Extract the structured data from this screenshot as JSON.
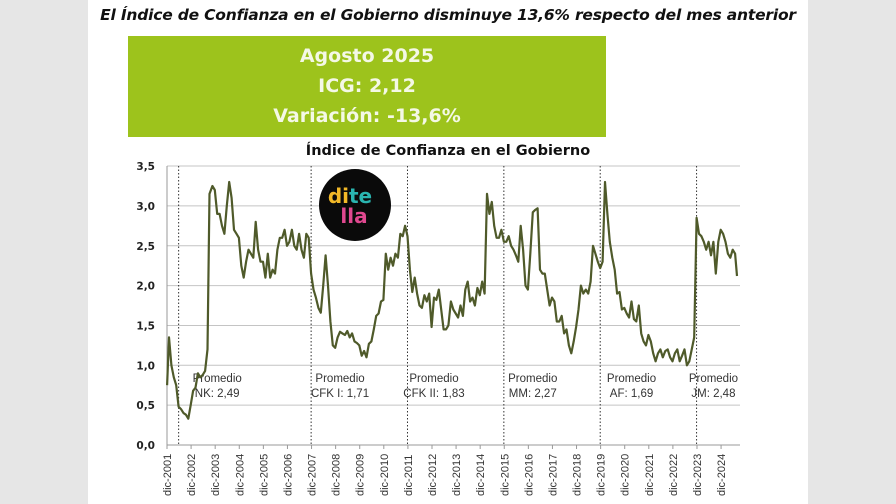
{
  "headline": "El Índice de Confianza en el Gobierno disminuye 13,6% respecto del mes anterior",
  "banner": {
    "period": "Agosto 2025",
    "icg": "ICG: 2,12",
    "variation": "Variación: -13,6%",
    "color": "#9dc31c"
  },
  "logo": {
    "parts": [
      "di",
      "te",
      "lla"
    ],
    "colors": {
      "di": "#f2b928",
      "te": "#2ab5b0",
      "lla": "#e0488f",
      "bg": "#0a0a0a"
    }
  },
  "chart_data": {
    "type": "line",
    "title": "Índice de Confianza en el Gobierno",
    "xlabel": "",
    "ylabel": "",
    "ylim": [
      0,
      3.5
    ],
    "yticks": [
      "0,0",
      "0,5",
      "1,0",
      "1,5",
      "2,0",
      "2,5",
      "3,0",
      "3,5"
    ],
    "grid": true,
    "line_color": "#4f5a2a",
    "x_tick_labels": [
      "dic-2001",
      "dic-2002",
      "dic-2003",
      "dic-2004",
      "dic-2005",
      "dic-2006",
      "dic-2007",
      "dic-2008",
      "dic-2009",
      "dic-2010",
      "dic-2011",
      "dic-2012",
      "dic-2013",
      "dic-2014",
      "dic-2015",
      "dic-2016",
      "dic-2017",
      "dic-2018",
      "dic-2019",
      "dic-2020",
      "dic-2021",
      "dic-2022",
      "dic-2023",
      "dic-2024"
    ],
    "period_dividers": [
      2002.4,
      2007.9,
      2011.9,
      2015.9,
      2019.9,
      2023.9
    ],
    "period_averages": [
      {
        "line1": "Promedio",
        "line2": "NK: 2,49",
        "x": 2004.0
      },
      {
        "line1": "Promedio",
        "line2": "CFK I: 1,71",
        "x": 2009.1
      },
      {
        "line1": "Promedio",
        "line2": "CFK II: 1,83",
        "x": 2013.0
      },
      {
        "line1": "Promedio",
        "line2": "MM: 2,27",
        "x": 2017.1
      },
      {
        "line1": "Promedio",
        "line2": "AF: 1,69",
        "x": 2021.2
      },
      {
        "line1": "Promedio",
        "line2": "JM: 2,48",
        "x": 2024.6
      }
    ],
    "series": [
      {
        "name": "ICG",
        "points": [
          [
            2001.92,
            0.75
          ],
          [
            2002.0,
            1.35
          ],
          [
            2002.1,
            1.0
          ],
          [
            2002.2,
            0.85
          ],
          [
            2002.3,
            0.75
          ],
          [
            2002.4,
            0.48
          ],
          [
            2002.5,
            0.45
          ],
          [
            2002.6,
            0.4
          ],
          [
            2002.7,
            0.38
          ],
          [
            2002.8,
            0.33
          ],
          [
            2002.9,
            0.5
          ],
          [
            2003.0,
            0.68
          ],
          [
            2003.1,
            0.72
          ],
          [
            2003.2,
            0.9
          ],
          [
            2003.3,
            0.85
          ],
          [
            2003.4,
            0.88
          ],
          [
            2003.5,
            0.93
          ],
          [
            2003.6,
            1.2
          ],
          [
            2003.68,
            3.15
          ],
          [
            2003.8,
            3.25
          ],
          [
            2003.9,
            3.2
          ],
          [
            2004.0,
            2.9
          ],
          [
            2004.1,
            2.9
          ],
          [
            2004.2,
            2.75
          ],
          [
            2004.3,
            2.65
          ],
          [
            2004.4,
            3.0
          ],
          [
            2004.5,
            3.3
          ],
          [
            2004.6,
            3.1
          ],
          [
            2004.7,
            2.7
          ],
          [
            2004.8,
            2.65
          ],
          [
            2004.9,
            2.6
          ],
          [
            2005.0,
            2.25
          ],
          [
            2005.1,
            2.1
          ],
          [
            2005.2,
            2.3
          ],
          [
            2005.3,
            2.45
          ],
          [
            2005.4,
            2.4
          ],
          [
            2005.5,
            2.35
          ],
          [
            2005.6,
            2.8
          ],
          [
            2005.7,
            2.45
          ],
          [
            2005.8,
            2.3
          ],
          [
            2005.9,
            2.3
          ],
          [
            2006.0,
            2.1
          ],
          [
            2006.1,
            2.4
          ],
          [
            2006.2,
            2.1
          ],
          [
            2006.3,
            2.2
          ],
          [
            2006.4,
            2.15
          ],
          [
            2006.5,
            2.45
          ],
          [
            2006.6,
            2.6
          ],
          [
            2006.7,
            2.6
          ],
          [
            2006.8,
            2.7
          ],
          [
            2006.9,
            2.5
          ],
          [
            2007.0,
            2.55
          ],
          [
            2007.1,
            2.7
          ],
          [
            2007.2,
            2.5
          ],
          [
            2007.3,
            2.45
          ],
          [
            2007.4,
            2.65
          ],
          [
            2007.5,
            2.45
          ],
          [
            2007.6,
            2.35
          ],
          [
            2007.7,
            2.65
          ],
          [
            2007.8,
            2.6
          ],
          [
            2007.9,
            2.15
          ],
          [
            2008.0,
            1.95
          ],
          [
            2008.1,
            1.85
          ],
          [
            2008.2,
            1.72
          ],
          [
            2008.3,
            1.66
          ],
          [
            2008.4,
            2.0
          ],
          [
            2008.5,
            2.38
          ],
          [
            2008.6,
            2.0
          ],
          [
            2008.7,
            1.55
          ],
          [
            2008.8,
            1.25
          ],
          [
            2008.9,
            1.22
          ],
          [
            2009.0,
            1.35
          ],
          [
            2009.1,
            1.42
          ],
          [
            2009.2,
            1.4
          ],
          [
            2009.3,
            1.38
          ],
          [
            2009.4,
            1.43
          ],
          [
            2009.5,
            1.35
          ],
          [
            2009.6,
            1.4
          ],
          [
            2009.7,
            1.3
          ],
          [
            2009.8,
            1.28
          ],
          [
            2009.9,
            1.25
          ],
          [
            2010.0,
            1.12
          ],
          [
            2010.1,
            1.18
          ],
          [
            2010.2,
            1.1
          ],
          [
            2010.3,
            1.27
          ],
          [
            2010.4,
            1.3
          ],
          [
            2010.5,
            1.45
          ],
          [
            2010.6,
            1.62
          ],
          [
            2010.7,
            1.65
          ],
          [
            2010.8,
            1.8
          ],
          [
            2010.9,
            1.82
          ],
          [
            2011.0,
            2.4
          ],
          [
            2011.1,
            2.2
          ],
          [
            2011.2,
            2.35
          ],
          [
            2011.3,
            2.25
          ],
          [
            2011.4,
            2.4
          ],
          [
            2011.5,
            2.35
          ],
          [
            2011.6,
            2.65
          ],
          [
            2011.7,
            2.62
          ],
          [
            2011.8,
            2.75
          ],
          [
            2011.9,
            2.62
          ],
          [
            2012.0,
            2.2
          ],
          [
            2012.1,
            1.92
          ],
          [
            2012.2,
            2.1
          ],
          [
            2012.3,
            1.9
          ],
          [
            2012.4,
            1.75
          ],
          [
            2012.5,
            1.72
          ],
          [
            2012.6,
            1.88
          ],
          [
            2012.7,
            1.8
          ],
          [
            2012.8,
            1.9
          ],
          [
            2012.9,
            1.48
          ],
          [
            2013.0,
            1.85
          ],
          [
            2013.1,
            1.82
          ],
          [
            2013.2,
            1.95
          ],
          [
            2013.3,
            1.7
          ],
          [
            2013.4,
            1.45
          ],
          [
            2013.5,
            1.45
          ],
          [
            2013.6,
            1.5
          ],
          [
            2013.7,
            1.8
          ],
          [
            2013.8,
            1.7
          ],
          [
            2013.9,
            1.65
          ],
          [
            2014.0,
            1.6
          ],
          [
            2014.1,
            1.75
          ],
          [
            2014.2,
            1.62
          ],
          [
            2014.3,
            1.95
          ],
          [
            2014.4,
            2.05
          ],
          [
            2014.5,
            1.8
          ],
          [
            2014.6,
            1.85
          ],
          [
            2014.7,
            1.75
          ],
          [
            2014.8,
            1.97
          ],
          [
            2014.9,
            1.88
          ],
          [
            2015.0,
            2.05
          ],
          [
            2015.1,
            1.9
          ],
          [
            2015.2,
            3.15
          ],
          [
            2015.3,
            2.9
          ],
          [
            2015.4,
            3.05
          ],
          [
            2015.5,
            2.75
          ],
          [
            2015.6,
            2.6
          ],
          [
            2015.7,
            2.6
          ],
          [
            2015.8,
            2.7
          ],
          [
            2015.9,
            2.55
          ],
          [
            2016.0,
            2.55
          ],
          [
            2016.1,
            2.62
          ],
          [
            2016.2,
            2.5
          ],
          [
            2016.3,
            2.45
          ],
          [
            2016.4,
            2.38
          ],
          [
            2016.5,
            2.3
          ],
          [
            2016.6,
            2.75
          ],
          [
            2016.7,
            2.45
          ],
          [
            2016.8,
            2.0
          ],
          [
            2016.9,
            1.95
          ],
          [
            2017.0,
            2.4
          ],
          [
            2017.1,
            2.92
          ],
          [
            2017.2,
            2.95
          ],
          [
            2017.3,
            2.97
          ],
          [
            2017.4,
            2.2
          ],
          [
            2017.5,
            2.15
          ],
          [
            2017.6,
            2.15
          ],
          [
            2017.7,
            1.95
          ],
          [
            2017.8,
            1.75
          ],
          [
            2017.9,
            1.85
          ],
          [
            2018.0,
            1.8
          ],
          [
            2018.1,
            1.55
          ],
          [
            2018.2,
            1.55
          ],
          [
            2018.3,
            1.62
          ],
          [
            2018.4,
            1.4
          ],
          [
            2018.5,
            1.45
          ],
          [
            2018.6,
            1.25
          ],
          [
            2018.7,
            1.15
          ],
          [
            2018.8,
            1.3
          ],
          [
            2018.9,
            1.48
          ],
          [
            2019.0,
            1.7
          ],
          [
            2019.1,
            2.0
          ],
          [
            2019.2,
            1.9
          ],
          [
            2019.3,
            1.95
          ],
          [
            2019.4,
            1.9
          ],
          [
            2019.5,
            2.05
          ],
          [
            2019.6,
            2.5
          ],
          [
            2019.7,
            2.4
          ],
          [
            2019.8,
            2.3
          ],
          [
            2019.9,
            2.22
          ],
          [
            2020.0,
            2.3
          ],
          [
            2020.1,
            3.3
          ],
          [
            2020.2,
            2.9
          ],
          [
            2020.3,
            2.55
          ],
          [
            2020.4,
            2.35
          ],
          [
            2020.5,
            2.2
          ],
          [
            2020.6,
            1.9
          ],
          [
            2020.7,
            1.92
          ],
          [
            2020.8,
            1.7
          ],
          [
            2020.9,
            1.72
          ],
          [
            2021.0,
            1.65
          ],
          [
            2021.1,
            1.6
          ],
          [
            2021.2,
            1.8
          ],
          [
            2021.3,
            1.58
          ],
          [
            2021.4,
            1.55
          ],
          [
            2021.5,
            1.75
          ],
          [
            2021.6,
            1.4
          ],
          [
            2021.7,
            1.3
          ],
          [
            2021.8,
            1.25
          ],
          [
            2021.9,
            1.38
          ],
          [
            2022.0,
            1.3
          ],
          [
            2022.1,
            1.15
          ],
          [
            2022.2,
            1.05
          ],
          [
            2022.3,
            1.15
          ],
          [
            2022.4,
            1.2
          ],
          [
            2022.5,
            1.1
          ],
          [
            2022.6,
            1.18
          ],
          [
            2022.7,
            1.2
          ],
          [
            2022.8,
            1.1
          ],
          [
            2022.9,
            1.05
          ],
          [
            2023.0,
            1.15
          ],
          [
            2023.1,
            1.2
          ],
          [
            2023.2,
            1.05
          ],
          [
            2023.3,
            1.12
          ],
          [
            2023.4,
            1.2
          ],
          [
            2023.5,
            1.0
          ],
          [
            2023.6,
            1.05
          ],
          [
            2023.8,
            1.35
          ],
          [
            2023.9,
            2.85
          ],
          [
            2024.0,
            2.65
          ],
          [
            2024.1,
            2.62
          ],
          [
            2024.2,
            2.55
          ],
          [
            2024.3,
            2.45
          ],
          [
            2024.4,
            2.55
          ],
          [
            2024.5,
            2.38
          ],
          [
            2024.6,
            2.55
          ],
          [
            2024.7,
            2.15
          ],
          [
            2024.8,
            2.55
          ],
          [
            2024.9,
            2.7
          ],
          [
            2025.0,
            2.65
          ],
          [
            2025.1,
            2.55
          ],
          [
            2025.2,
            2.4
          ],
          [
            2025.3,
            2.35
          ],
          [
            2025.4,
            2.45
          ],
          [
            2025.5,
            2.4
          ],
          [
            2025.58,
            2.12
          ]
        ]
      }
    ]
  }
}
